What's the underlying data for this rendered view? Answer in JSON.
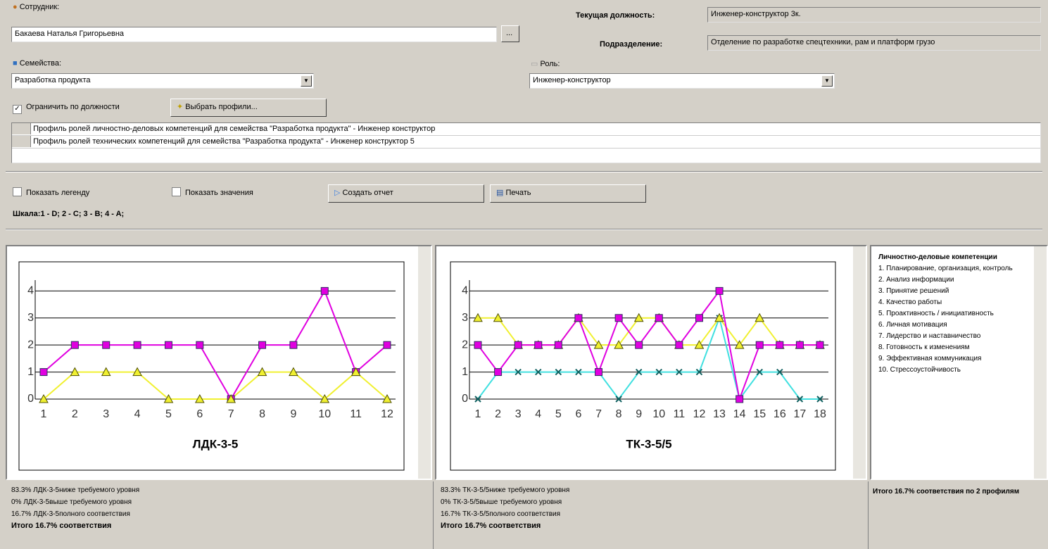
{
  "form": {
    "employee_label": "Сотрудник:",
    "employee_value": "Бакаева Наталья Григорьевна",
    "browse_button": "...",
    "position_label": "Текущая должность:",
    "position_value": "Инженер-конструктор 3к.",
    "department_label": "Подразделение:",
    "department_value": "Отделение по разработке спецтехники, рам и платформ грузо",
    "family_label": "Семейства:",
    "family_value": "Разработка продукта",
    "role_label": "Роль:",
    "role_value": "Инженер-конструктор",
    "limit_label": "Ограничить по должности",
    "select_profiles": "Выбрать профили...",
    "profiles": [
      "Профиль ролей личностно-деловых  компетенций для семейства \"Разработка продукта\" - Инженер конструктор",
      "Профиль ролей технических компетенций для семейства \"Разработка продукта\" - Инженер конструктор 5"
    ],
    "show_legend": "Показать легенду",
    "show_values": "Показать значения",
    "create_report": "Создать отчет",
    "print": "Печать",
    "scale": "Шкала:1 - D; 2 - C; 3 - B; 4 - A;"
  },
  "chart_data": [
    {
      "type": "line",
      "title": "ЛДК-3-5",
      "categories": [
        "1",
        "2",
        "3",
        "4",
        "5",
        "6",
        "7",
        "8",
        "9",
        "10",
        "11",
        "12"
      ],
      "ylim": [
        0,
        4.4
      ],
      "yticks": [
        0,
        1,
        2,
        3,
        4
      ],
      "grid": true,
      "series": [
        {
          "color": "#e000e0",
          "marker": "square",
          "values": [
            1,
            2,
            2,
            2,
            2,
            2,
            0,
            2,
            2,
            4,
            1,
            2
          ]
        },
        {
          "color": "#f0f030",
          "marker": "triangle",
          "values": [
            0,
            1,
            1,
            1,
            0,
            0,
            0,
            1,
            1,
            0,
            1,
            0
          ]
        }
      ]
    },
    {
      "type": "line",
      "title": "ТК-3-5/5",
      "categories": [
        "1",
        "2",
        "3",
        "4",
        "5",
        "6",
        "7",
        "8",
        "9",
        "10",
        "11",
        "12",
        "13",
        "14",
        "15",
        "16",
        "17",
        "18"
      ],
      "ylim": [
        0,
        4.4
      ],
      "yticks": [
        0,
        1,
        2,
        3,
        4
      ],
      "grid": true,
      "series": [
        {
          "color": "#40e0e0",
          "marker": "x",
          "values": [
            0,
            1,
            1,
            1,
            1,
            1,
            1,
            0,
            1,
            1,
            1,
            1,
            3,
            0,
            1,
            1,
            0,
            0
          ]
        },
        {
          "color": "#f0f030",
          "marker": "triangle",
          "values": [
            3,
            3,
            2,
            2,
            2,
            3,
            2,
            2,
            3,
            3,
            2,
            2,
            3,
            2,
            3,
            2,
            2,
            2
          ]
        },
        {
          "color": "#e000e0",
          "marker": "square",
          "values": [
            2,
            1,
            2,
            2,
            2,
            3,
            1,
            3,
            2,
            3,
            2,
            3,
            4,
            0,
            2,
            2,
            2,
            2
          ]
        }
      ]
    }
  ],
  "summaries": [
    [
      "83.3% ЛДК-3-5ниже требуемого уровня",
      "0% ЛДК-3-5выше требуемого уровня",
      "16.7% ЛДК-3-5полного соответствия",
      "Итого 16.7% соответствия"
    ],
    [
      "83.3% ТК-3-5/5ниже требуемого уровня",
      "0% ТК-3-5/5выше требуемого уровня",
      "16.7% ТК-3-5/5полного соответствия",
      "Итого 16.7% соответствия"
    ]
  ],
  "legend_panel": {
    "title": "Личностно-деловые компетенции",
    "items": [
      "1. Планирование, организация, контроль",
      "2. Анализ информации",
      "3. Принятие решений",
      "4. Качество работы",
      "5. Проактивность / инициативность",
      "6. Личная мотивация",
      "7. Лидерство  и наставничество",
      "8. Готовность к изменениям",
      "9. Эффективная коммуникация",
      "10. Стрессоустойчивость"
    ]
  },
  "total": "Итого 16.7% соответствия по 2 профилям"
}
